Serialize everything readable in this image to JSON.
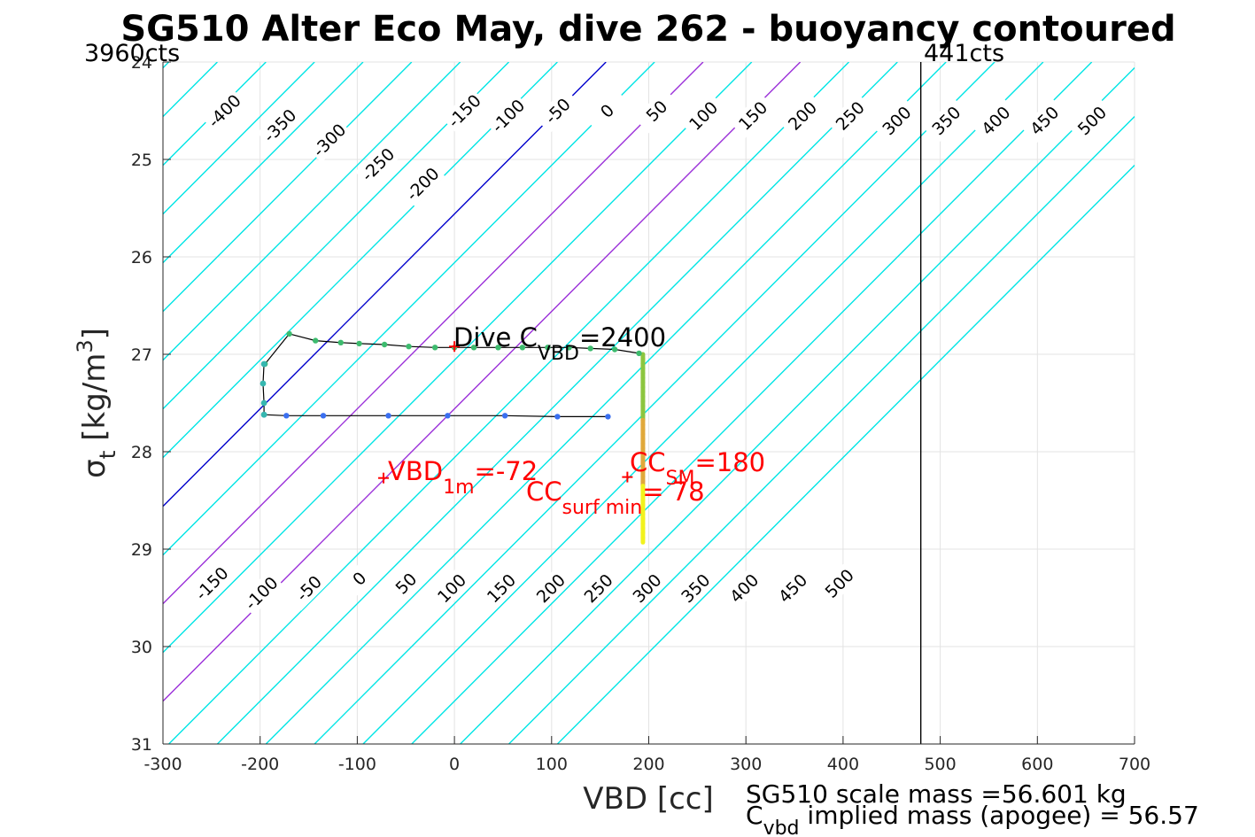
{
  "chart_data": {
    "type": "line",
    "title": "SG510 Alter Eco May, dive 262 - buoyancy contoured",
    "xlabel": "VBD [cc]",
    "ylabel": {
      "main": "σ",
      "sub": "t",
      "unit": " [kg/m",
      "sup": "3",
      "close": "]"
    },
    "xlim": [
      -300,
      700
    ],
    "ylim": [
      24,
      31
    ],
    "y_reversed": true,
    "grid": true,
    "x_ticks": [
      -300,
      -200,
      -100,
      0,
      100,
      200,
      300,
      400,
      500,
      600,
      700
    ],
    "y_ticks": [
      24,
      25,
      26,
      27,
      28,
      29,
      30,
      31
    ],
    "corner_labels": {
      "left": "3960cts",
      "right": "441cts"
    },
    "vertical_limit_x": 480,
    "buoyancy_contours": {
      "values": [
        -450,
        -400,
        -350,
        -300,
        -250,
        -200,
        -150,
        -100,
        -50,
        0,
        50,
        100,
        150,
        200,
        250,
        300,
        350,
        400,
        450,
        500,
        550,
        600,
        650
      ],
      "slope_cc_per_kgm3": -100,
      "colors": {
        "default": "#00e5e5",
        "zero": "#0000cc",
        "sm_pair": "#9b30d9"
      },
      "highlight_values": [
        100,
        200
      ],
      "top_labels": [
        {
          "text": "-400",
          "vbd": -237,
          "sigma": 24.5
        },
        {
          "text": "-350",
          "vbd": -180,
          "sigma": 24.65
        },
        {
          "text": "-300",
          "vbd": -129,
          "sigma": 24.8
        },
        {
          "text": "-250",
          "vbd": -79,
          "sigma": 25.05
        },
        {
          "text": "-200",
          "vbd": -33,
          "sigma": 25.25
        },
        {
          "text": "-150",
          "vbd": 10,
          "sigma": 24.5
        },
        {
          "text": "-100",
          "vbd": 55,
          "sigma": 24.55
        },
        {
          "text": "-50",
          "vbd": 106,
          "sigma": 24.5
        },
        {
          "text": "0",
          "vbd": 157,
          "sigma": 24.5
        },
        {
          "text": "50",
          "vbd": 208,
          "sigma": 24.5
        },
        {
          "text": "100",
          "vbd": 256,
          "sigma": 24.55
        },
        {
          "text": "150",
          "vbd": 307,
          "sigma": 24.55
        },
        {
          "text": "200",
          "vbd": 358,
          "sigma": 24.55
        },
        {
          "text": "250",
          "vbd": 407,
          "sigma": 24.55
        },
        {
          "text": "300",
          "vbd": 455,
          "sigma": 24.6
        },
        {
          "text": "350",
          "vbd": 506,
          "sigma": 24.6
        },
        {
          "text": "400",
          "vbd": 557,
          "sigma": 24.6
        },
        {
          "text": "450",
          "vbd": 607,
          "sigma": 24.6
        },
        {
          "text": "500",
          "vbd": 656,
          "sigma": 24.6
        }
      ],
      "bottom_labels": [
        {
          "text": "-150",
          "vbd": -250,
          "sigma": 29.35
        },
        {
          "text": "-100",
          "vbd": -199,
          "sigma": 29.45
        },
        {
          "text": "-50",
          "vbd": -150,
          "sigma": 29.4
        },
        {
          "text": "0",
          "vbd": -98,
          "sigma": 29.3
        },
        {
          "text": "50",
          "vbd": -50,
          "sigma": 29.35
        },
        {
          "text": "100",
          "vbd": -3,
          "sigma": 29.4
        },
        {
          "text": "150",
          "vbd": 48,
          "sigma": 29.4
        },
        {
          "text": "200",
          "vbd": 99,
          "sigma": 29.4
        },
        {
          "text": "250",
          "vbd": 148,
          "sigma": 29.4
        },
        {
          "text": "300",
          "vbd": 198,
          "sigma": 29.4
        },
        {
          "text": "350",
          "vbd": 248,
          "sigma": 29.4
        },
        {
          "text": "400",
          "vbd": 298,
          "sigma": 29.4
        },
        {
          "text": "450",
          "vbd": 348,
          "sigma": 29.4
        },
        {
          "text": "500",
          "vbd": 396,
          "sigma": 29.35
        }
      ]
    },
    "track": {
      "color": "#000000",
      "upper_leg": {
        "x": [
          190,
          165,
          140,
          118,
          96,
          70,
          45,
          20,
          0,
          -20,
          -47,
          -72,
          -98,
          -117,
          -143,
          -170,
          -195
        ],
        "y": [
          26.99,
          26.95,
          26.94,
          26.93,
          26.93,
          26.93,
          26.93,
          26.93,
          26.93,
          26.93,
          26.92,
          26.9,
          26.89,
          26.88,
          26.86,
          26.79,
          27.1
        ],
        "point_color": "#3dbb6e"
      },
      "lower_leg": {
        "x": [
          -196,
          -173,
          -135,
          -68,
          -7,
          52,
          106,
          158
        ],
        "y": [
          27.62,
          27.63,
          27.63,
          27.63,
          27.63,
          27.63,
          27.64,
          27.64
        ],
        "point_color": "#3a6ff0"
      },
      "left_connector": {
        "x": [
          -196,
          -197,
          -196,
          -196
        ],
        "y": [
          27.1,
          27.3,
          27.5,
          27.62
        ]
      },
      "right_column": {
        "x": 194,
        "y_start": 27.0,
        "y_end": 28.93
      }
    },
    "markers": [
      {
        "label": "dive_cvbd",
        "vbd": 0,
        "sigma": 26.92
      },
      {
        "label": "vbd_1m",
        "vbd": -73,
        "sigma": 28.27
      },
      {
        "label": "cc_sm",
        "vbd": 178,
        "sigma": 28.26
      }
    ],
    "annotations": {
      "dive_cvbd": {
        "prefix": "Dive C",
        "sub": "VBD",
        "suffix": "=2400"
      },
      "vbd_1m": {
        "prefix": "VBD",
        "sub": "1m",
        "suffix": "=-72"
      },
      "cc_sm": {
        "prefix": "CC",
        "sub": "SM",
        "suffix": "=180"
      },
      "cc_surf_min": {
        "prefix": "CC",
        "sub": "surf min",
        "suffix": "= 78"
      }
    },
    "footer": {
      "line1": "SG510 scale mass =56.601 kg",
      "line2_prefix": "C",
      "line2_sub": "vbd",
      "line2_suffix": " implied mass (apogee) = 56.57"
    }
  }
}
